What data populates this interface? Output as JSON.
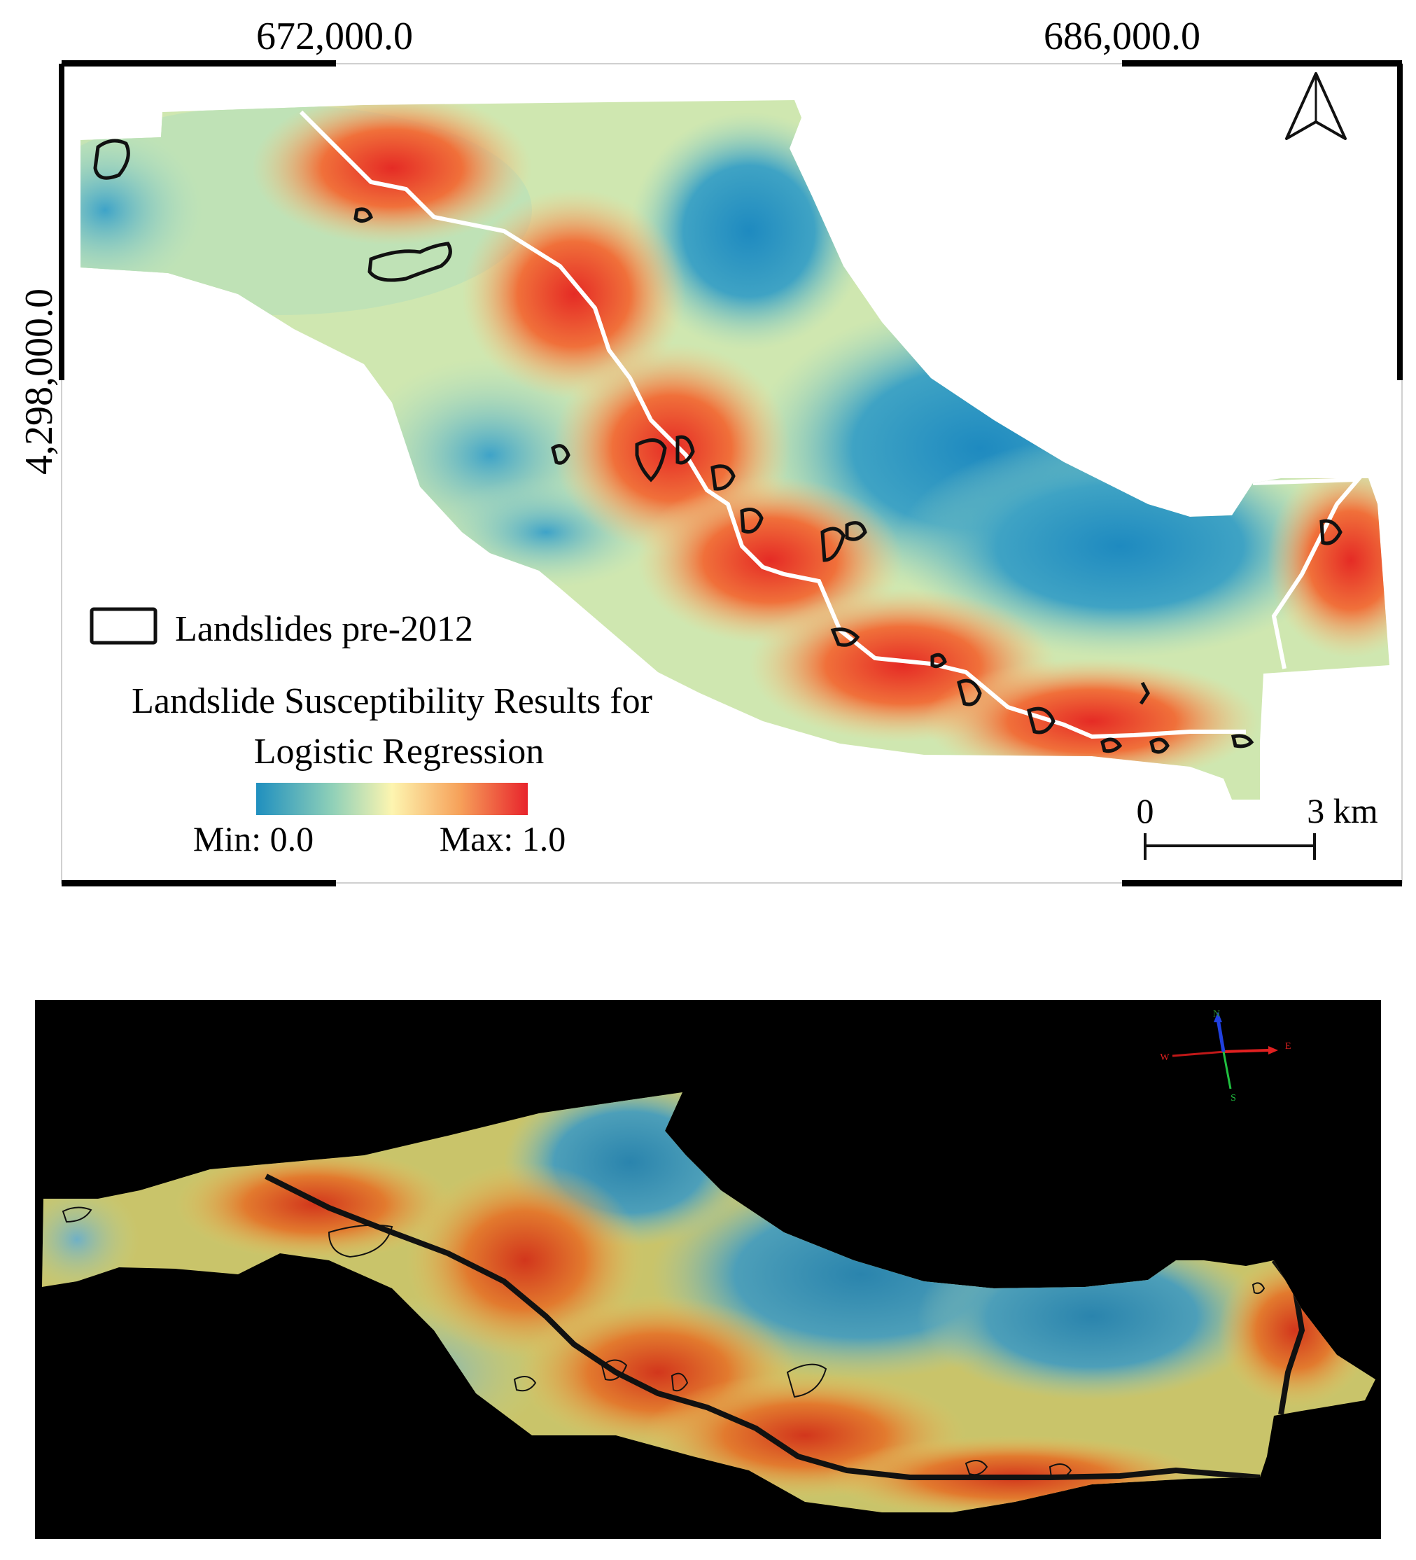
{
  "top_map": {
    "coord_labels": {
      "x_left": "672,000.0",
      "x_right": "686,000.0",
      "y_left": "4,298,000.0"
    },
    "legend": {
      "landslides_label": "Landslides pre-2012",
      "title_line1": "Landslide Susceptibility Results for",
      "title_line2": "Logistic Regression",
      "min_label": "Min: 0.0",
      "max_label": "Max: 1.0"
    },
    "scale_bar": {
      "zero_label": "0",
      "end_label": "3 km"
    },
    "north_arrow_icon": "north-arrow-icon",
    "colors": {
      "low": "#1f8fbf",
      "mid_low": "#8fd0b8",
      "mid": "#fdf5b0",
      "mid_high": "#f6a15a",
      "high": "#e8242c"
    }
  },
  "bottom_map": {
    "compass_labels": {
      "n": "N",
      "e": "E",
      "w": "W",
      "s": "S"
    },
    "compass_icon": "compass-rose-icon",
    "background": "#000000"
  }
}
